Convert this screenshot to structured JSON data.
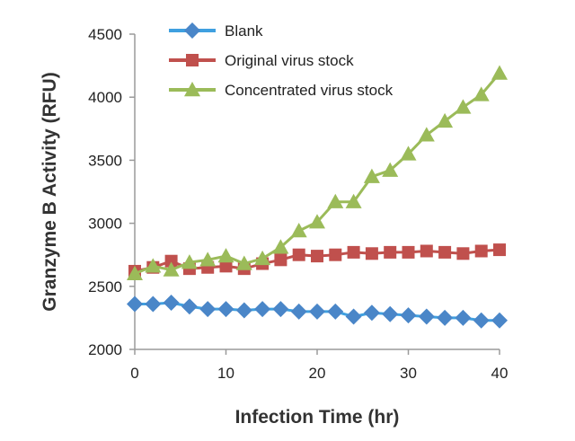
{
  "chart_data": {
    "type": "line",
    "title": "",
    "xlabel": "Infection Time (hr)",
    "ylabel": "Granzyme B Activity (RFU)",
    "xlim": [
      0,
      40
    ],
    "ylim": [
      2000,
      4500
    ],
    "x_ticks": [
      "0",
      "10",
      "20",
      "30",
      "40"
    ],
    "y_ticks": [
      "2000",
      "2500",
      "3000",
      "3500",
      "4000",
      "4500"
    ],
    "grid": false,
    "legend_position": "top-left",
    "x": [
      0,
      2,
      4,
      6,
      8,
      10,
      12,
      14,
      16,
      18,
      20,
      22,
      24,
      26,
      28,
      30,
      32,
      34,
      36,
      38,
      40
    ],
    "series": [
      {
        "name": "Blank",
        "color": "#4a86c8",
        "line_color": "#3fa0e0",
        "marker": "diamond",
        "values": [
          2360,
          2360,
          2370,
          2340,
          2320,
          2320,
          2310,
          2320,
          2320,
          2300,
          2300,
          2300,
          2260,
          2290,
          2280,
          2270,
          2260,
          2250,
          2250,
          2230,
          2230
        ]
      },
      {
        "name": "Original virus stock",
        "color": "#c0504d",
        "line_color": "#c0504d",
        "marker": "square",
        "values": [
          2620,
          2650,
          2700,
          2640,
          2650,
          2660,
          2640,
          2680,
          2710,
          2750,
          2740,
          2750,
          2770,
          2760,
          2770,
          2770,
          2780,
          2770,
          2760,
          2780,
          2790
        ]
      },
      {
        "name": "Concentrated virus stock",
        "color": "#9bbb59",
        "line_color": "#9bbb59",
        "marker": "triangle",
        "values": [
          2600,
          2660,
          2630,
          2690,
          2710,
          2740,
          2680,
          2720,
          2810,
          2940,
          3010,
          3170,
          3170,
          3370,
          3420,
          3550,
          3700,
          3810,
          3920,
          4020,
          4190
        ]
      }
    ]
  }
}
